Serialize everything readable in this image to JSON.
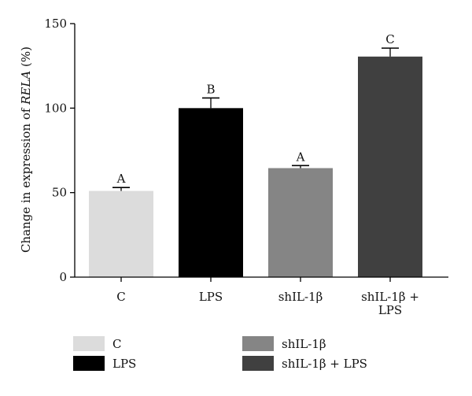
{
  "chart_data": {
    "type": "bar",
    "title": "",
    "xlabel": "",
    "ylabel": {
      "prefix": "Change in expression of ",
      "gene": "RELA",
      "suffix": " (%)"
    },
    "ylim": [
      0,
      150
    ],
    "yticks": [
      {
        "value": 0,
        "label": "0"
      },
      {
        "value": 50,
        "label": "50"
      },
      {
        "value": 100,
        "label": "100"
      },
      {
        "value": 150,
        "label": "150"
      }
    ],
    "grid": false,
    "legend_position": "bottom",
    "categories": [
      {
        "name": "C",
        "lines": [
          "C"
        ],
        "value": 51,
        "error": 2,
        "sig": "A",
        "color": "#dcdcdc"
      },
      {
        "name": "LPS",
        "lines": [
          "LPS"
        ],
        "value": 100,
        "error": 6,
        "sig": "B",
        "color": "#000000"
      },
      {
        "name": "shIL-1β",
        "lines": [
          "shIL-1β"
        ],
        "value": 64.5,
        "error": 1.5,
        "sig": "A",
        "color": "#858585"
      },
      {
        "name": "shIL-1β + LPS",
        "lines": [
          "shIL-1β +",
          "LPS"
        ],
        "value": 130.5,
        "error": 5,
        "sig": "C",
        "color": "#404040"
      }
    ],
    "legend": [
      {
        "label": "C",
        "color": "#dcdcdc"
      },
      {
        "label": "shIL-1β",
        "color": "#858585"
      },
      {
        "label": "LPS",
        "color": "#000000"
      },
      {
        "label": "shIL-1β + LPS",
        "color": "#404040"
      }
    ]
  }
}
